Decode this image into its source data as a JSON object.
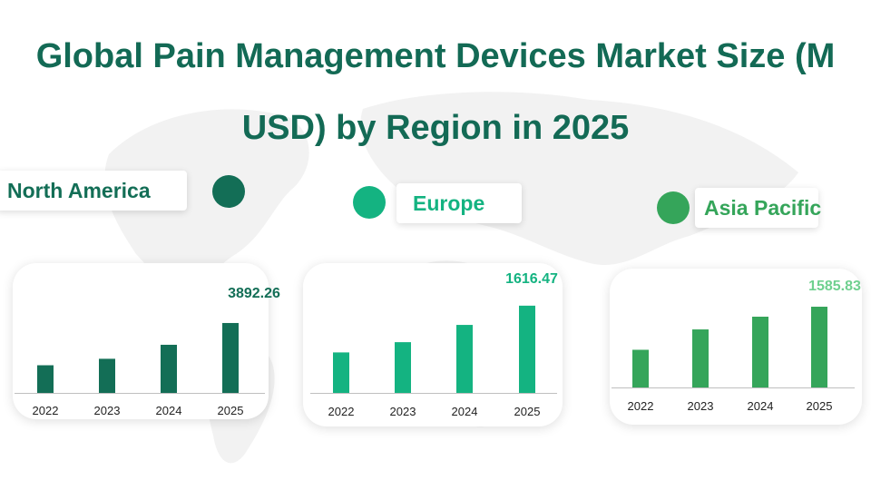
{
  "title_line1": "Global Pain Management Devices Market Size (M",
  "title_line2": "USD) by Region in 2025",
  "chart_data": [
    {
      "type": "bar",
      "series_label": "North America",
      "color": "#136e56",
      "categories": [
        "2022",
        "2023",
        "2024",
        "2025"
      ],
      "values": [
        1540,
        1900,
        2680,
        3892.26
      ],
      "value_label": "3892.26",
      "ylim": [
        0,
        4800
      ]
    },
    {
      "type": "bar",
      "series_label": "Europe",
      "color": "#14b381",
      "categories": [
        "2022",
        "2023",
        "2024",
        "2025"
      ],
      "values": [
        750,
        940,
        1260,
        1616.47
      ],
      "value_label": "1616.47",
      "ylim": [
        0,
        1900
      ]
    },
    {
      "type": "bar",
      "series_label": "Asia Pacific",
      "color": "#35a55a",
      "categories": [
        "2022",
        "2023",
        "2024",
        "2025"
      ],
      "values": [
        740,
        1140,
        1390,
        1585.83
      ],
      "value_label": "1585.83",
      "ylim": [
        0,
        1800
      ]
    }
  ],
  "colors": {
    "title": "#136a55",
    "north_america": "#136e56",
    "europe": "#14b381",
    "asia_pacific": "#35a55a",
    "asia_pacific_value": "#6fd08f"
  }
}
